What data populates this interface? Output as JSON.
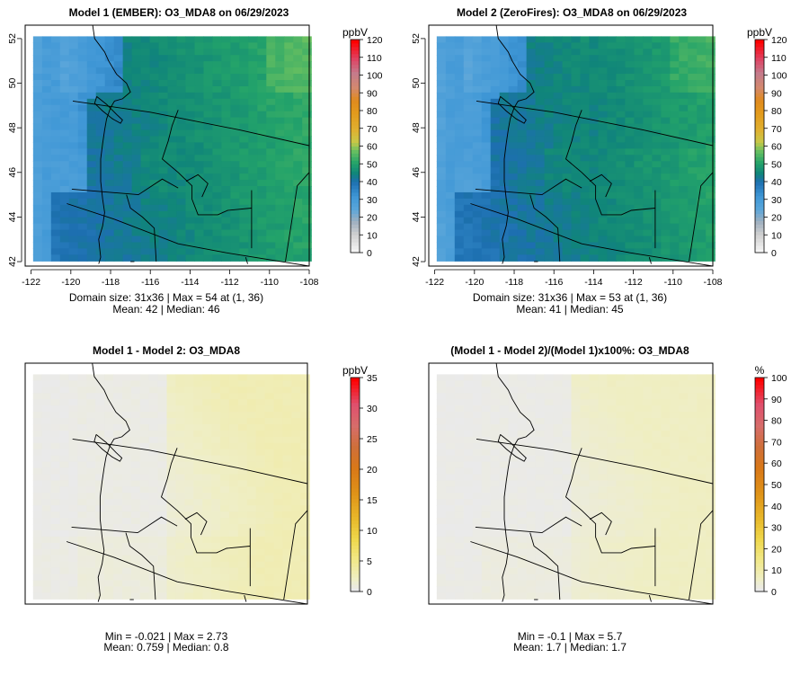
{
  "panels": [
    {
      "title": "Model 1 (EMBER): O3_MDA8 on 06/29/2023",
      "show_axes": true,
      "x_ticks": [
        "-122",
        "-120",
        "-118",
        "-116",
        "-114",
        "-112",
        "-110",
        "-108"
      ],
      "y_ticks": [
        "42",
        "44",
        "46",
        "48",
        "50",
        "52"
      ],
      "stats_line1": "Domain size: 31x36 | Max = 54 at (1, 36)",
      "stats_line2": "Mean: 42 |  Median: 46",
      "legend_unit": "ppbV",
      "legend_ticks": [
        "0",
        "10",
        "20",
        "30",
        "40",
        "50",
        "60",
        "70",
        "80",
        "90",
        "100",
        "110",
        "120"
      ],
      "legend_max": 120,
      "field": "o3"
    },
    {
      "title": "Model 2 (ZeroFires): O3_MDA8 on 06/29/2023",
      "show_axes": true,
      "x_ticks": [
        "-122",
        "-120",
        "-118",
        "-116",
        "-114",
        "-112",
        "-110",
        "-108"
      ],
      "y_ticks": [
        "42",
        "44",
        "46",
        "48",
        "50",
        "52"
      ],
      "stats_line1": "Domain size: 31x36 | Max = 53 at (1, 36)",
      "stats_line2": "Mean: 41 |  Median: 45",
      "legend_unit": "ppbV",
      "legend_ticks": [
        "0",
        "10",
        "20",
        "30",
        "40",
        "50",
        "60",
        "70",
        "80",
        "90",
        "100",
        "110",
        "120"
      ],
      "legend_max": 120,
      "field": "o3"
    },
    {
      "title": "Model 1 - Model 2: O3_MDA8",
      "show_axes": false,
      "x_ticks": [],
      "y_ticks": [],
      "stats_line1": "Min = -0.021 | Max = 2.73",
      "stats_line2": "Mean: 0.759 |  Median: 0.8",
      "legend_unit": "ppbV",
      "legend_ticks": [
        "0",
        "5",
        "10",
        "15",
        "20",
        "25",
        "30",
        "35"
      ],
      "legend_max": 35,
      "field": "diff"
    },
    {
      "title": "(Model 1 - Model 2)/(Model 1)x100%: O3_MDA8",
      "show_axes": false,
      "x_ticks": [],
      "y_ticks": [],
      "stats_line1": "Min = -0.1 | Max = 5.7",
      "stats_line2": "Mean: 1.7 |  Median: 1.7",
      "legend_unit": "%",
      "legend_ticks": [
        "0",
        "10",
        "20",
        "30",
        "40",
        "50",
        "60",
        "70",
        "80",
        "90",
        "100"
      ],
      "legend_max": 100,
      "field": "pct"
    }
  ],
  "chart_data": [
    {
      "type": "heatmap",
      "title": "Model 1 (EMBER): O3_MDA8 on 06/29/2023",
      "xlabel": "",
      "ylabel": "",
      "xlim": [
        -122,
        -108
      ],
      "ylim": [
        42,
        52
      ],
      "colorbar": {
        "label": "ppbV",
        "range": [
          0,
          120
        ]
      },
      "grid_size": "31x36",
      "summary": {
        "max": 54,
        "max_at": "(1, 36)",
        "mean": 42,
        "median": 46
      },
      "region_values": {
        "coast_offshore": 30,
        "puget_sound_west": 26,
        "willamette_valley": 32,
        "interior_plateau": 45,
        "east_idaho_montana": 49,
        "snake_river": 48
      }
    },
    {
      "type": "heatmap",
      "title": "Model 2 (ZeroFires): O3_MDA8 on 06/29/2023",
      "xlabel": "",
      "ylabel": "",
      "xlim": [
        -122,
        -108
      ],
      "ylim": [
        42,
        52
      ],
      "colorbar": {
        "label": "ppbV",
        "range": [
          0,
          120
        ]
      },
      "grid_size": "31x36",
      "summary": {
        "max": 53,
        "max_at": "(1, 36)",
        "mean": 41,
        "median": 45
      },
      "region_values": {
        "coast_offshore": 30,
        "puget_sound_west": 26,
        "willamette_valley": 32,
        "interior_plateau": 44,
        "east_idaho_montana": 47,
        "snake_river": 47
      }
    },
    {
      "type": "heatmap",
      "title": "Model 1 - Model 2: O3_MDA8",
      "colorbar": {
        "label": "ppbV",
        "range": [
          0,
          35
        ]
      },
      "summary": {
        "min": -0.021,
        "max": 2.73,
        "mean": 0.759,
        "median": 0.8
      }
    },
    {
      "type": "heatmap",
      "title": "(Model 1 - Model 2)/(Model 1)x100%: O3_MDA8",
      "colorbar": {
        "label": "%",
        "range": [
          0,
          100
        ]
      },
      "summary": {
        "min": -0.1,
        "max": 5.7,
        "mean": 1.7,
        "median": 1.7
      }
    }
  ]
}
